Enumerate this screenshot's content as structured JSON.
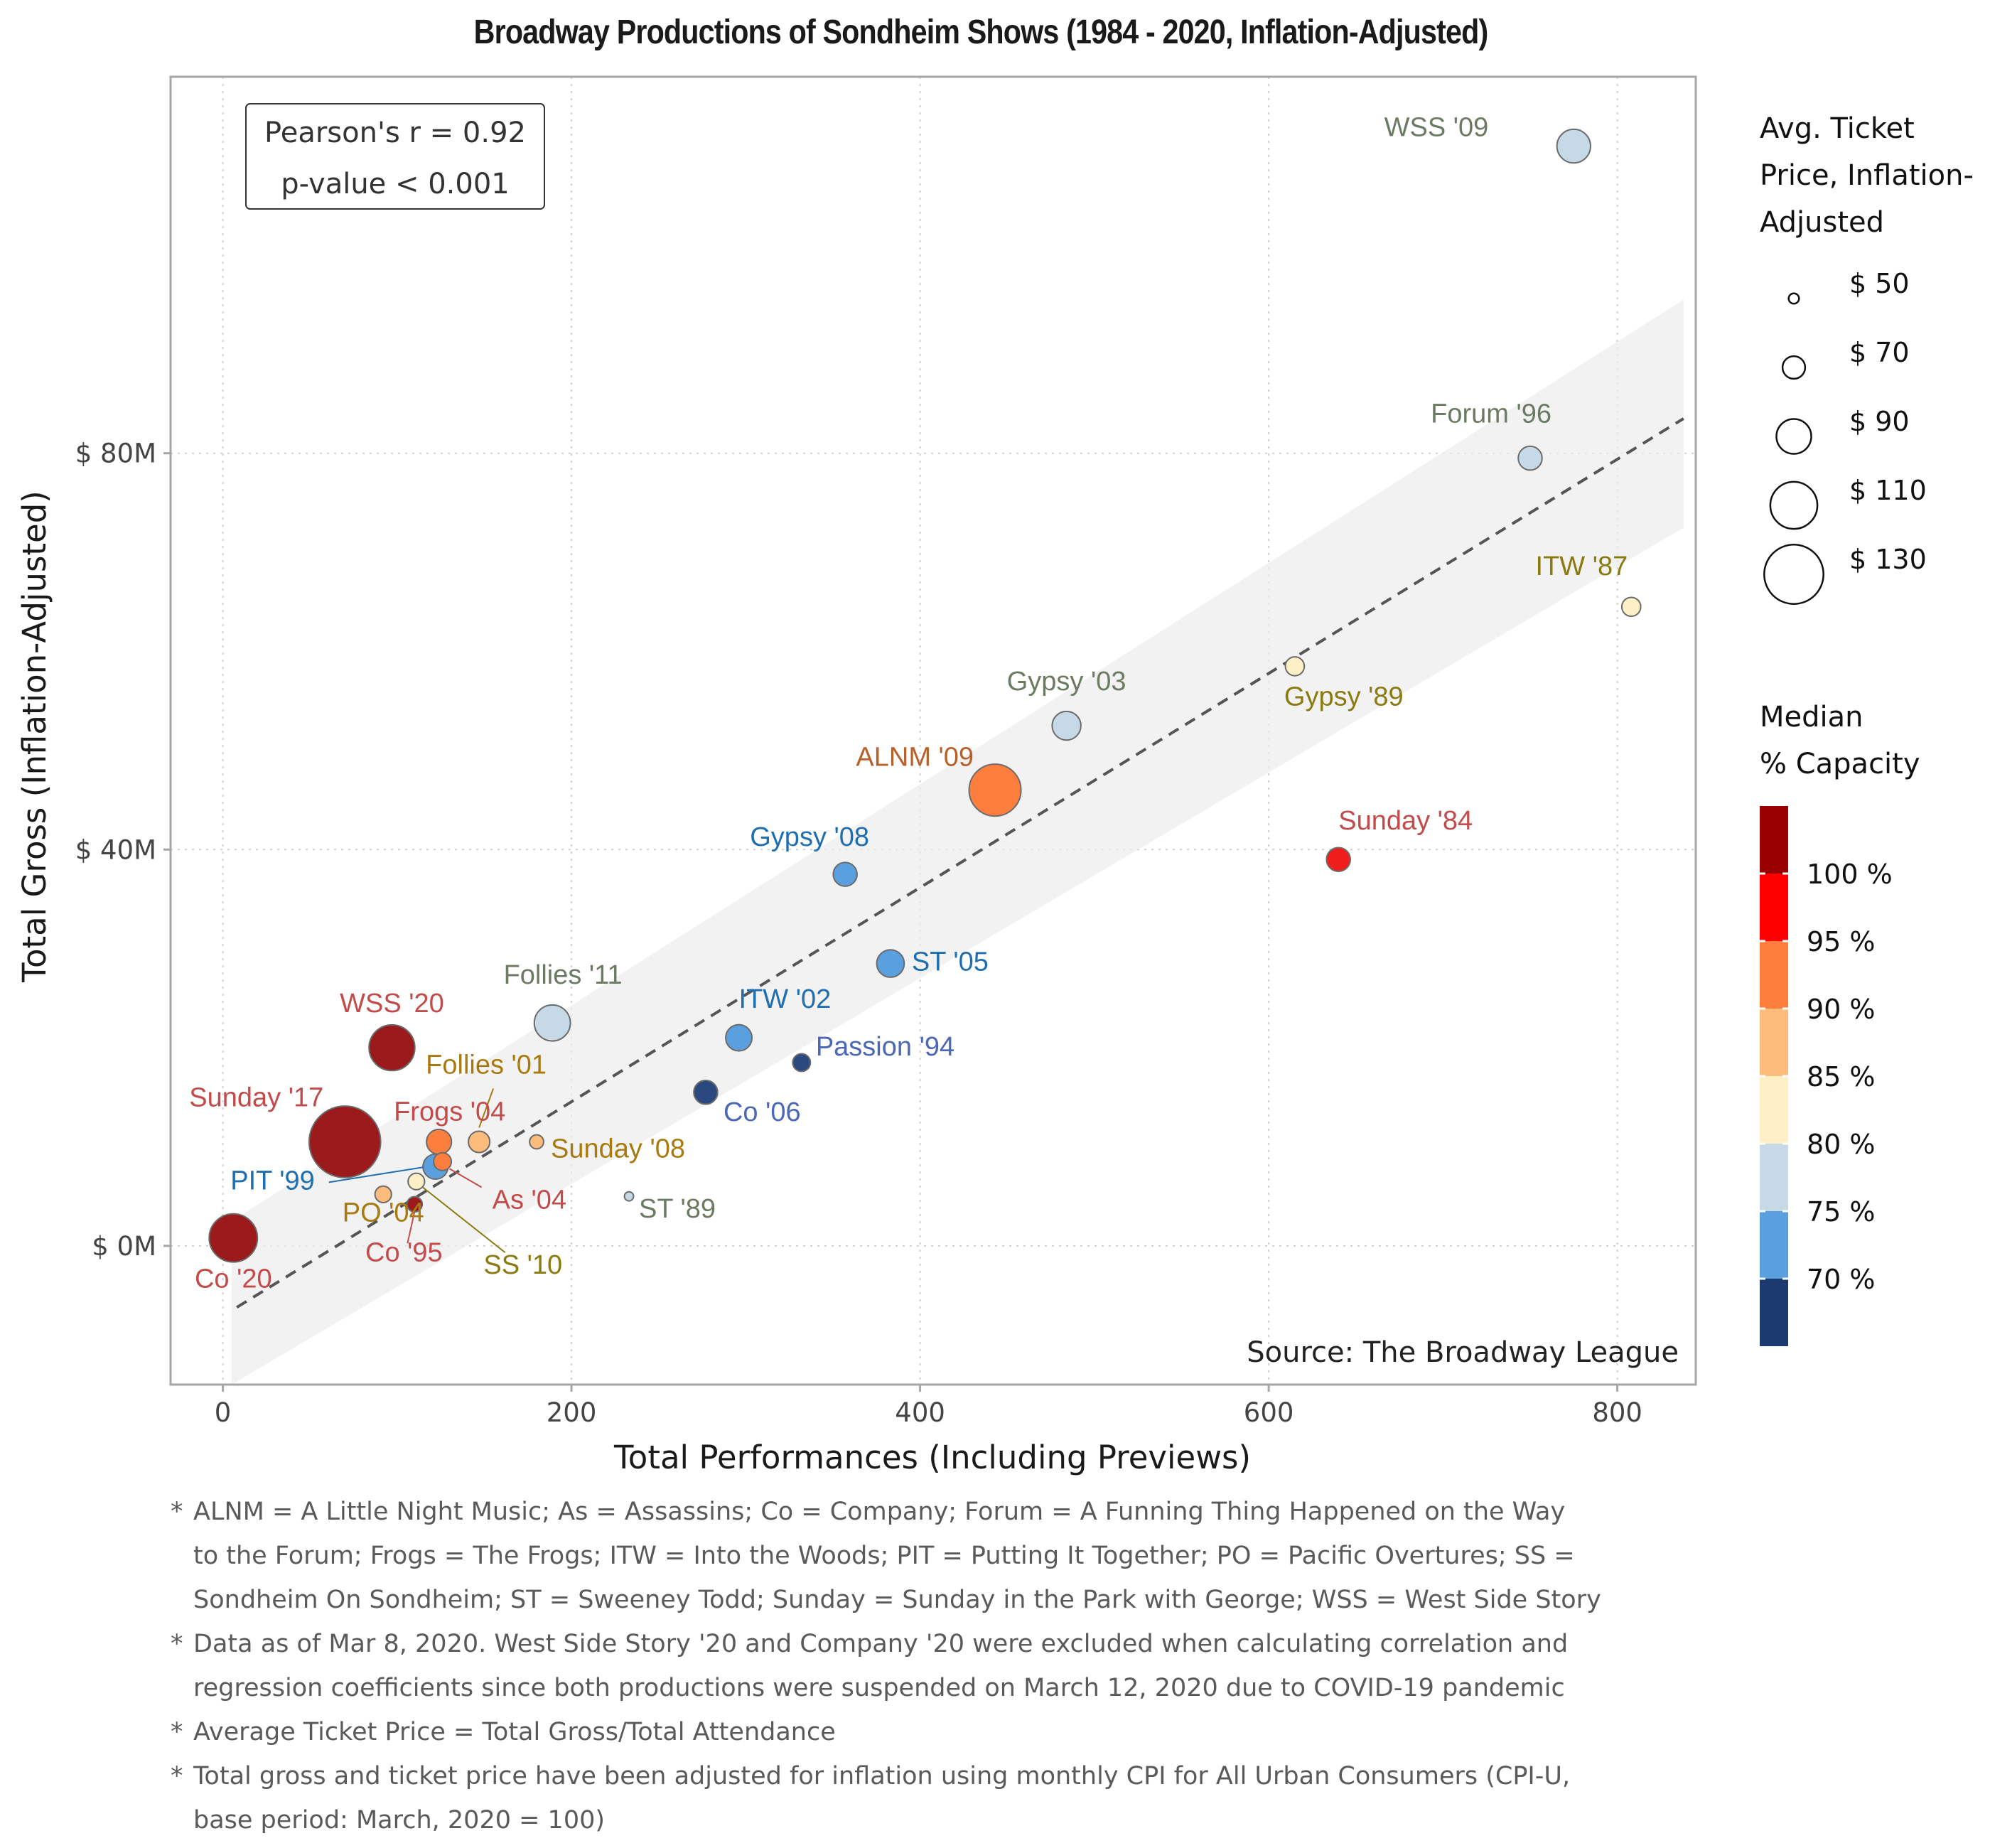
{
  "chart_data": {
    "type": "scatter",
    "title": "Broadway Productions of Sondheim Shows (1984 - 2020, Inflation-Adjusted)",
    "xlabel": "Total Performances (Including Previews)",
    "ylabel": "Total Gross (Inflation-Adjusted)",
    "xlim": [
      -30,
      845
    ],
    "ylim": [
      -14,
      118
    ],
    "x_ticks": [
      0,
      200,
      400,
      600,
      800
    ],
    "x_tick_labels": [
      "0",
      "200",
      "400",
      "600",
      "800"
    ],
    "y_ticks": [
      0,
      40,
      80
    ],
    "y_tick_labels": [
      "$ 0M",
      "$ 40M",
      "$ 80M"
    ],
    "grid": true,
    "annotation": [
      "Pearson's r = 0.92",
      "p-value < 0.001"
    ],
    "source": "Source: The Broadway League",
    "regression": {
      "x0": 8,
      "y0": -6.2,
      "x1": 838,
      "y1": 83.5,
      "band_x0": 5,
      "band_lo0": -14,
      "band_hi0": 2.5,
      "band_x1": 838,
      "band_lo1": 72.5,
      "band_hi1": 95.5
    },
    "points": [
      {
        "label": "WSS '09",
        "x": 775,
        "y": 111,
        "price": 88,
        "color": "#c6d9e6"
      },
      {
        "label": "Forum '96",
        "x": 750,
        "y": 79.5,
        "price": 72,
        "color": "#c6d9e6"
      },
      {
        "label": "ITW '87",
        "x": 808,
        "y": 64.5,
        "price": 64,
        "color": "#fdf0c6"
      },
      {
        "label": "Gypsy '89",
        "x": 615,
        "y": 58.5,
        "price": 64,
        "color": "#fdf0c6"
      },
      {
        "label": "Gypsy '03",
        "x": 484,
        "y": 52.5,
        "price": 80,
        "color": "#c6d9e6"
      },
      {
        "label": "ALNM '09",
        "x": 443,
        "y": 46,
        "price": 118,
        "color": "#fe7e3d"
      },
      {
        "label": "Sunday '84",
        "x": 640,
        "y": 39,
        "price": 72,
        "color": "#f01d1d"
      },
      {
        "label": "Gypsy '08",
        "x": 357,
        "y": 37.5,
        "price": 72,
        "color": "#5ba0de"
      },
      {
        "label": "ST '05",
        "x": 383,
        "y": 28.5,
        "price": 78,
        "color": "#5ba0de"
      },
      {
        "label": "Follies '11",
        "x": 189,
        "y": 22.5,
        "price": 92,
        "color": "#c6d9e6"
      },
      {
        "label": "WSS '20",
        "x": 97,
        "y": 20,
        "price": 108,
        "color": "#9b1a1c"
      },
      {
        "label": "ITW '02",
        "x": 296,
        "y": 21,
        "price": 76,
        "color": "#5ba0de"
      },
      {
        "label": "Passion '94",
        "x": 332,
        "y": 18.5,
        "price": 62,
        "color": "#2a4a7f"
      },
      {
        "label": "Co '06",
        "x": 277,
        "y": 15.5,
        "price": 72,
        "color": "#2a4a7f"
      },
      {
        "label": "Sunday '17",
        "x": 70,
        "y": 10.5,
        "price": 150,
        "color": "#9b1a1c"
      },
      {
        "label": "Frogs '04",
        "x": 124,
        "y": 10.5,
        "price": 74,
        "color": "#fe7e3d"
      },
      {
        "label": "Follies '01",
        "x": 147,
        "y": 10.5,
        "price": 68,
        "color": "#fdbb7c"
      },
      {
        "label": "Sunday '08",
        "x": 180,
        "y": 10.5,
        "price": 56,
        "color": "#fdbb7c"
      },
      {
        "label": "PIT '99",
        "x": 122,
        "y": 8,
        "price": 74,
        "color": "#5ba0de"
      },
      {
        "label": "As '04",
        "x": 126,
        "y": 8.5,
        "price": 62,
        "color": "#fe7e3d"
      },
      {
        "label": "SS '10",
        "x": 111,
        "y": 6.5,
        "price": 60,
        "color": "#fdf0c6"
      },
      {
        "label": "PO '04",
        "x": 92,
        "y": 5.2,
        "price": 60,
        "color": "#fdbb7c"
      },
      {
        "label": "Co '95",
        "x": 110,
        "y": 4.2,
        "price": 58,
        "color": "#9b1a1c"
      },
      {
        "label": "ST '89",
        "x": 233,
        "y": 5,
        "price": 48,
        "color": "#c6d9e6"
      },
      {
        "label": "Co '20",
        "x": 6,
        "y": 0.8,
        "price": 112,
        "color": "#9b1a1c"
      }
    ],
    "size_legend": {
      "title": [
        "Avg. Ticket",
        "Price, Inflation-",
        "Adjusted"
      ],
      "labels": [
        "$ 50",
        "$ 70",
        "$ 90",
        "$ 110",
        "$ 130"
      ],
      "values": [
        50,
        70,
        90,
        110,
        130
      ]
    },
    "color_legend": {
      "title": [
        "Median",
        "% Capacity"
      ],
      "labels": [
        "100 %",
        "95 %",
        "90 %",
        "85 %",
        "80 %",
        "75 %",
        "70 %"
      ],
      "colors": [
        "#9b0000",
        "#ff0000",
        "#fe7e3d",
        "#fdbb7c",
        "#fdf0c6",
        "#c6d9e6",
        "#5ba0de",
        "#1b3a70"
      ]
    }
  },
  "footnotes": [
    [
      "ALNM = A Little Night Music; As = Assassins; Co = Company; Forum = A Funning Thing Happened on the Way",
      "to the Forum; Frogs = The Frogs; ITW = Into the Woods; PIT = Putting It Together; PO = Pacific Overtures; SS =",
      "Sondheim On Sondheim; ST = Sweeney Todd; Sunday = Sunday in the Park with George; WSS = West Side Story"
    ],
    [
      "Data as of Mar 8, 2020.  West Side Story '20 and Company '20 were excluded when calculating correlation and",
      "regression coefficients since both productions were suspended on March 12, 2020 due to COVID-19 pandemic"
    ],
    [
      "Average Ticket Price = Total Gross/Total Attendance"
    ],
    [
      "Total gross and ticket price have been adjusted for inflation using monthly CPI for All Urban Consumers (CPI-U,",
      "base period: March, 2020 = 100)"
    ]
  ]
}
